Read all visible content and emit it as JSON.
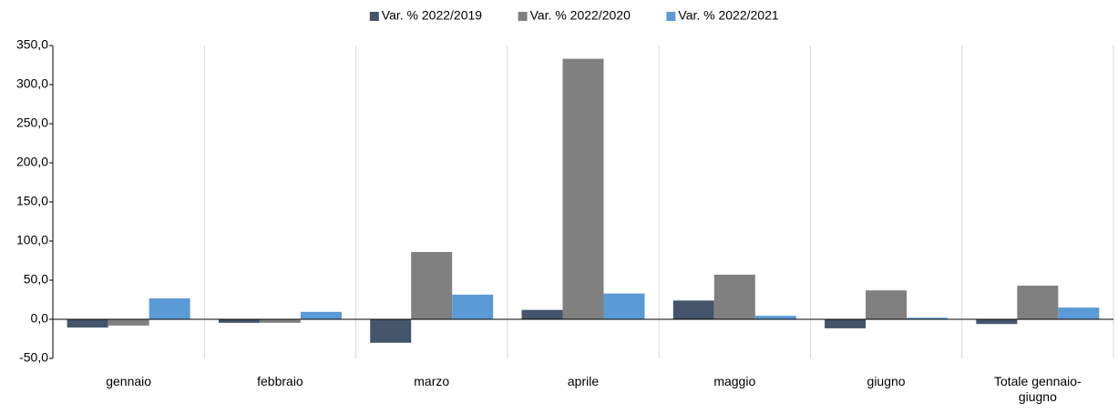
{
  "chart_data": {
    "type": "bar",
    "categories": [
      "gennaio",
      "febbraio",
      "marzo",
      "aprile",
      "maggio",
      "giugno",
      "Totale gennaio-giugno"
    ],
    "series": [
      {
        "name": "Var. % 2022/2019",
        "color": "#44546a",
        "values": [
          -10.5,
          -4.5,
          -30,
          12,
          24,
          -11.5,
          -6
        ]
      },
      {
        "name": "Var. % 2022/2020",
        "color": "#808080",
        "values": [
          -8,
          -4.5,
          86,
          333,
          57,
          37,
          43
        ]
      },
      {
        "name": "Var. % 2022/2021",
        "color": "#5b9bd5",
        "values": [
          26.7,
          9.5,
          31.5,
          33,
          4.5,
          2,
          15
        ]
      }
    ],
    "ylim": [
      -50,
      350
    ],
    "yticks": [
      {
        "value": -50,
        "label": "-50,0"
      },
      {
        "value": 0,
        "label": "0,0"
      },
      {
        "value": 50,
        "label": "50,0"
      },
      {
        "value": 100,
        "label": "100,0"
      },
      {
        "value": 150,
        "label": "150,0"
      },
      {
        "value": 200,
        "label": "200,0"
      },
      {
        "value": 250,
        "label": "250,0"
      },
      {
        "value": 300,
        "label": "300,0"
      },
      {
        "value": 350,
        "label": "350,0"
      }
    ],
    "grid": false,
    "legend": "top"
  }
}
